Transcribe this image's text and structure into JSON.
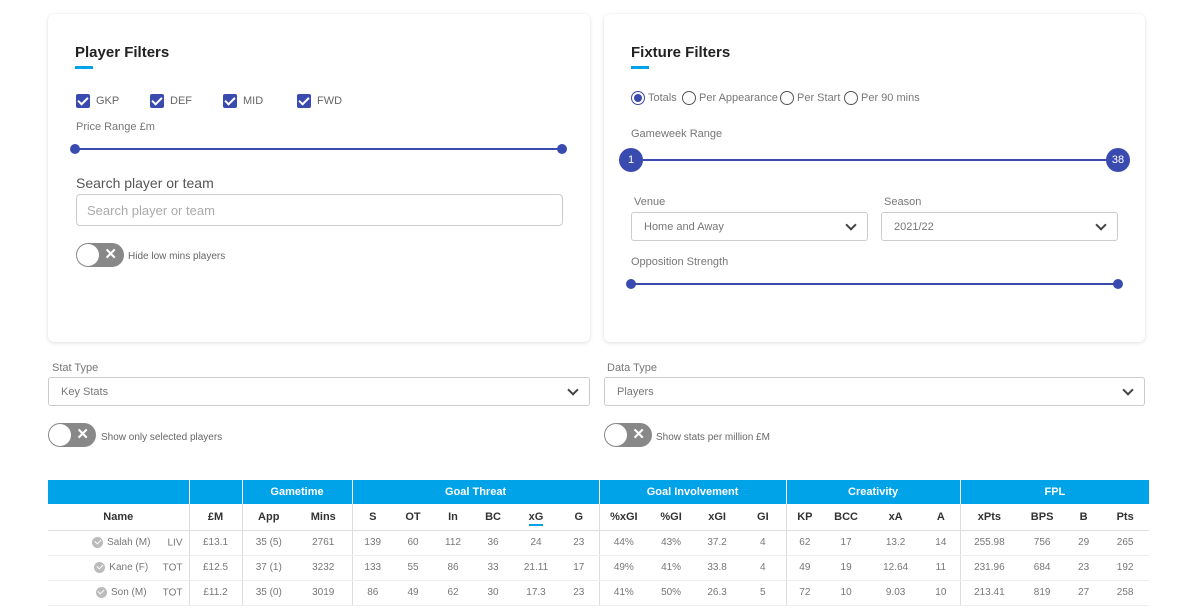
{
  "player_filters": {
    "title": "Player Filters",
    "positions": [
      {
        "label": "GKP",
        "checked": true
      },
      {
        "label": "DEF",
        "checked": true
      },
      {
        "label": "MID",
        "checked": true
      },
      {
        "label": "FWD",
        "checked": true
      }
    ],
    "price_range_label": "Price Range £m",
    "search_label": "Search player or team",
    "search_placeholder": "Search player or team",
    "hide_low_mins_label": "Hide low mins players"
  },
  "fixture_filters": {
    "title": "Fixture Filters",
    "modes": [
      {
        "label": "Totals",
        "selected": true
      },
      {
        "label": "Per Appearance",
        "selected": false
      },
      {
        "label": "Per Start",
        "selected": false
      },
      {
        "label": "Per 90 mins",
        "selected": false
      }
    ],
    "gameweek_range_label": "Gameweek Range",
    "gameweek_min": "1",
    "gameweek_max": "38",
    "venue_label": "Venue",
    "venue_value": "Home and Away",
    "season_label": "Season",
    "season_value": "2021/22",
    "opposition_strength_label": "Opposition Strength"
  },
  "stat_type": {
    "label": "Stat Type",
    "value": "Key Stats"
  },
  "data_type": {
    "label": "Data Type",
    "value": "Players"
  },
  "toggles": {
    "show_selected_label": "Show only selected players",
    "per_million_label": "Show stats per million £M"
  },
  "table": {
    "groups": [
      "",
      "",
      "Gametime",
      "Goal Threat",
      "Goal Involvement",
      "Creativity",
      "FPL"
    ],
    "columns": [
      "Name",
      "£M",
      "App",
      "Mins",
      "S",
      "OT",
      "In",
      "BC",
      "xG",
      "G",
      "%xGI",
      "%GI",
      "xGI",
      "GI",
      "KP",
      "BCC",
      "xA",
      "A",
      "xPts",
      "BPS",
      "B",
      "Pts"
    ],
    "rows": [
      {
        "name": "Salah (M)",
        "team": "LIV",
        "values": [
          "£13.1",
          "35 (5)",
          "2761",
          "139",
          "60",
          "112",
          "36",
          "24",
          "23",
          "44%",
          "43%",
          "37.2",
          "4",
          "62",
          "17",
          "13.2",
          "14",
          "255.98",
          "756",
          "29",
          "265"
        ]
      },
      {
        "name": "Kane (F)",
        "team": "TOT",
        "values": [
          "£12.5",
          "37 (1)",
          "3232",
          "133",
          "55",
          "86",
          "33",
          "21.11",
          "17",
          "49%",
          "41%",
          "33.8",
          "4",
          "49",
          "19",
          "12.64",
          "11",
          "231.96",
          "684",
          "23",
          "192"
        ]
      },
      {
        "name": "Son (M)",
        "team": "TOT",
        "values": [
          "£11.2",
          "35 (0)",
          "3019",
          "86",
          "49",
          "62",
          "30",
          "17.3",
          "23",
          "41%",
          "50%",
          "26.3",
          "5",
          "72",
          "10",
          "9.03",
          "10",
          "213.41",
          "819",
          "27",
          "258"
        ]
      }
    ]
  },
  "colors": {
    "accent": "#00a2e8",
    "control": "#3a4bb0"
  }
}
